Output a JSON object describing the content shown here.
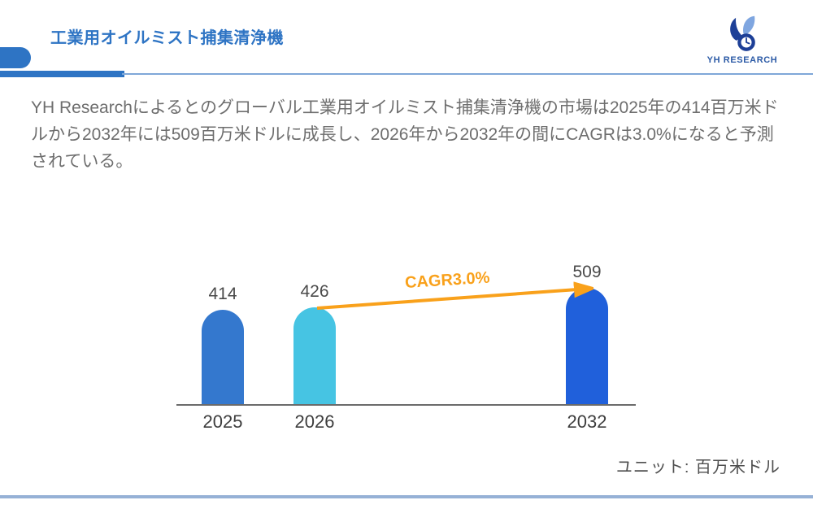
{
  "header": {
    "title": "工業用オイルミスト捕集清浄機",
    "logo": {
      "text": "YH RESEARCH"
    }
  },
  "intro": "YH Researchによるとのグローバル工業用オイルミスト捕集清浄機の市場は2025年の414百万米ドルから2032年には509百万米ドルに成長し、2026年から2032年の間にCAGRは3.0%になると予測されている。",
  "chart_data": {
    "type": "bar",
    "categories": [
      "2025",
      "2026",
      "2032"
    ],
    "values": [
      414,
      426,
      509
    ],
    "bar_colors": [
      "#3478CE",
      "#46C4E3",
      "#2060DB"
    ],
    "annotation": "CAGR3.0%",
    "annotation_color": "#F9A11B",
    "unit_label": "ユニット: 百万米ドル",
    "xlabel": "",
    "ylabel": "",
    "ylim": [
      0,
      560
    ],
    "grid": false,
    "legend": false
  },
  "colors": {
    "accent_blue": "#2E74C4",
    "header_line": "#7FA7D8",
    "footer_line": "#96B1D6",
    "arrow_orange": "#F9A11B",
    "body_text": "#6E6E6E",
    "axis_label_text": "#3D3D3D"
  }
}
